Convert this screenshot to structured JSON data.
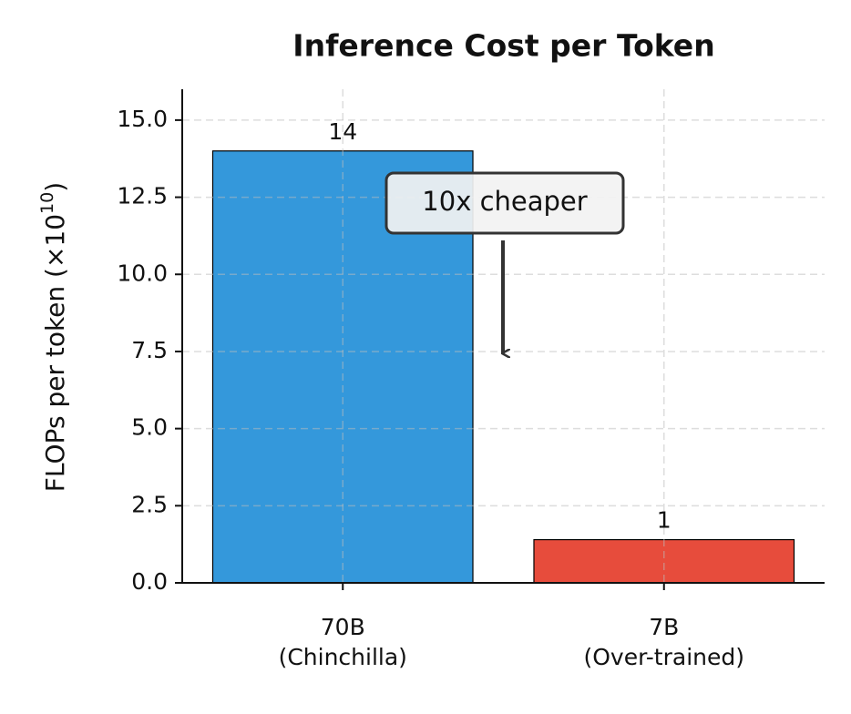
{
  "chart_data": {
    "type": "bar",
    "title": "Inference Cost per Token",
    "ylabel": "FLOPs per token (×10",
    "ylabel_exponent": "10",
    "ylabel_suffix": ")",
    "categories": [
      "70B\n(Chinchilla)",
      "7B\n(Over-trained)"
    ],
    "values": [
      14,
      1.4
    ],
    "value_labels": [
      "14",
      "1"
    ],
    "colors": [
      "#3498db",
      "#e74c3c"
    ],
    "ylim": [
      0,
      16
    ],
    "yticks": [
      {
        "value": 0,
        "label": "0.0"
      },
      {
        "value": 2.5,
        "label": "2.5"
      },
      {
        "value": 5,
        "label": "5.0"
      },
      {
        "value": 7.5,
        "label": "7.5"
      },
      {
        "value": 10,
        "label": "10.0"
      },
      {
        "value": 12.5,
        "label": "12.5"
      },
      {
        "value": 15,
        "label": "15.0"
      }
    ],
    "grid": true,
    "annotation": "10x cheaper"
  }
}
